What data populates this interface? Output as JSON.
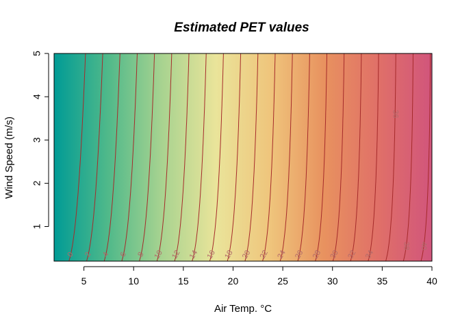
{
  "chart_data": {
    "type": "heatmap",
    "title": "Estimated PET values",
    "xlabel": "Air Temp. °C",
    "ylabel": "Wind Speed (m/s)",
    "xlim": [
      2,
      40
    ],
    "ylim": [
      0.2,
      5
    ],
    "x_ticks": [
      5,
      10,
      15,
      20,
      25,
      30,
      35,
      40
    ],
    "y_ticks": [
      1,
      2,
      3,
      4,
      5
    ],
    "x_tick_labels": [
      "5",
      "10",
      "15",
      "20",
      "25",
      "30",
      "35",
      "40"
    ],
    "y_tick_labels": [
      "1",
      "2",
      "3",
      "4",
      "5"
    ],
    "color_scale": {
      "min_value": 0,
      "max_value": 40,
      "stops": [
        "#009B95",
        "#50B98A",
        "#A8D390",
        "#EAE49A",
        "#EFC57C",
        "#E8925F",
        "#E07068",
        "#D1557C"
      ]
    },
    "contour_color": "#a52a2a",
    "contour_levels": [
      0,
      2,
      4,
      6,
      8,
      10,
      12,
      14,
      16,
      18,
      20,
      22,
      24,
      26,
      28,
      30,
      32,
      34,
      36,
      38,
      40
    ],
    "contour_labels": [
      {
        "text": "0",
        "value": 0
      },
      {
        "text": "2",
        "value": 2
      },
      {
        "text": "4",
        "value": 4
      },
      {
        "text": "6",
        "value": 6
      },
      {
        "text": "8",
        "value": 8
      },
      {
        "text": "10",
        "value": 10
      },
      {
        "text": "12",
        "value": 12
      },
      {
        "text": "14",
        "value": 14
      },
      {
        "text": "16",
        "value": 16
      },
      {
        "text": "18",
        "value": 18
      },
      {
        "text": "20",
        "value": 20
      },
      {
        "text": "22",
        "value": 22
      },
      {
        "text": "24",
        "value": 24
      },
      {
        "text": "26",
        "value": 26
      },
      {
        "text": "28",
        "value": 28
      },
      {
        "text": "30",
        "value": 30
      },
      {
        "text": "32",
        "value": 32
      },
      {
        "text": "34",
        "value": 34
      },
      {
        "text": "36",
        "value": 36
      },
      {
        "text": "38",
        "value": 38
      },
      {
        "text": "40",
        "value": 40
      }
    ],
    "grid": false,
    "legend": "none"
  }
}
